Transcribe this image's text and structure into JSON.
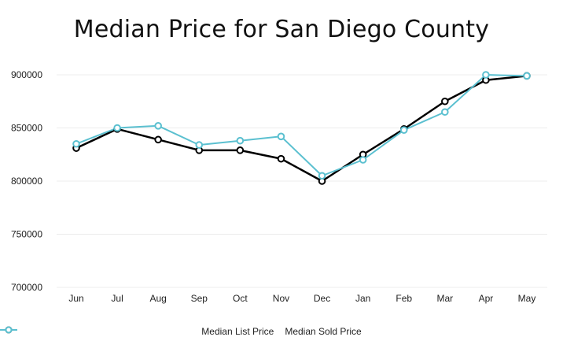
{
  "chart_data": {
    "type": "line",
    "title": "Median Price for San Diego County",
    "categories": [
      "Jun",
      "Jul",
      "Aug",
      "Sep",
      "Oct",
      "Nov",
      "Dec",
      "Jan",
      "Feb",
      "Mar",
      "Apr",
      "May"
    ],
    "series": [
      {
        "name": "Median List Price",
        "color": "#000000",
        "values": [
          831000,
          849000,
          839000,
          829000,
          829000,
          821000,
          800000,
          825000,
          849000,
          875000,
          895000,
          899000
        ]
      },
      {
        "name": "Median Sold Price",
        "color": "#5bc0d0",
        "values": [
          835000,
          850000,
          852000,
          834000,
          838000,
          842000,
          805000,
          820000,
          848000,
          865000,
          900000,
          899000
        ]
      }
    ],
    "yticks": [
      "700000",
      "750000",
      "800000",
      "850000",
      "900000"
    ],
    "ylim": [
      700000,
      900000
    ],
    "grid": true,
    "legend": "bottom-center"
  }
}
